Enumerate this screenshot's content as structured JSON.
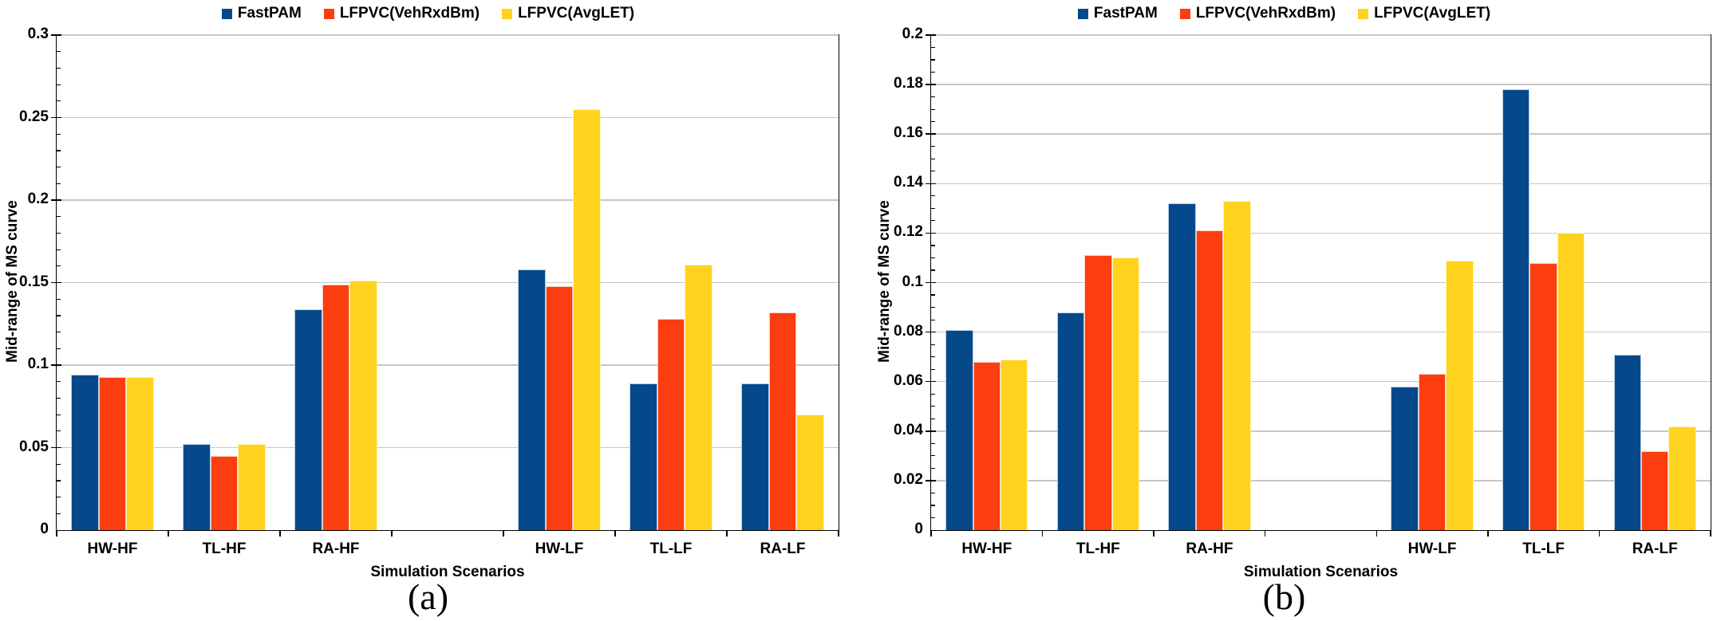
{
  "style": {
    "background": "#ffffff",
    "axis_color": "#000000",
    "grid_color": "#c6c6c6",
    "text_color": "#000000"
  },
  "chart_data": [
    {
      "type": "bar",
      "caption": "(a)",
      "xlabel": "Simulation Scenarios",
      "ylabel": "Mid-range of MS curve",
      "categories": [
        "HW-HF",
        "TL-HF",
        "RA-HF",
        "HW-LF",
        "TL-LF",
        "RA-LF"
      ],
      "series": [
        {
          "name": "FastPAM",
          "color": "#05498b",
          "border": "#b9cfe6",
          "values": [
            0.094,
            0.052,
            0.134,
            0.158,
            0.089,
            0.089
          ]
        },
        {
          "name": "LFPVC(VehRxdBm)",
          "color": "#fc3d0f",
          "border": "#ffc9b5",
          "values": [
            0.093,
            0.045,
            0.149,
            0.148,
            0.128,
            0.132
          ]
        },
        {
          "name": "LFPVC(AvgLET)",
          "color": "#ffd21e",
          "border": "#fff3bd",
          "values": [
            0.093,
            0.052,
            0.151,
            0.255,
            0.161,
            0.07
          ]
        }
      ],
      "ylim": [
        0,
        0.3
      ],
      "ytick_step": 0.05,
      "minor_tick_step": 0.01,
      "yticks": [
        "0",
        "0.05",
        "0.1",
        "0.15",
        "0.2",
        "0.25",
        "0.3"
      ],
      "slots": 7,
      "gap_slot_index": 3,
      "grid": true,
      "legend_position": "top-center"
    },
    {
      "type": "bar",
      "caption": "(b)",
      "xlabel": "Simulation Scenarios",
      "ylabel": "Mid-range of MS curve",
      "categories": [
        "HW-HF",
        "TL-HF",
        "RA-HF",
        "HW-LF",
        "TL-LF",
        "RA-LF"
      ],
      "series": [
        {
          "name": "FastPAM",
          "color": "#05498b",
          "border": "#b9cfe6",
          "values": [
            0.081,
            0.088,
            0.132,
            0.058,
            0.178,
            0.071
          ]
        },
        {
          "name": "LFPVC(VehRxdBm)",
          "color": "#fc3d0f",
          "border": "#ffc9b5",
          "values": [
            0.068,
            0.111,
            0.121,
            0.063,
            0.108,
            0.032
          ]
        },
        {
          "name": "LFPVC(AvgLET)",
          "color": "#ffd21e",
          "border": "#fff3bd",
          "values": [
            0.069,
            0.11,
            0.133,
            0.109,
            0.12,
            0.042
          ]
        }
      ],
      "ylim": [
        0,
        0.2
      ],
      "ytick_step": 0.02,
      "minor_tick_step": 0.005,
      "yticks": [
        "0",
        "0.02",
        "0.04",
        "0.06",
        "0.08",
        "0.1",
        "0.12",
        "0.14",
        "0.16",
        "0.18",
        "0.2"
      ],
      "slots": 7,
      "gap_slot_index": 3,
      "grid": true,
      "legend_position": "top-center"
    }
  ]
}
